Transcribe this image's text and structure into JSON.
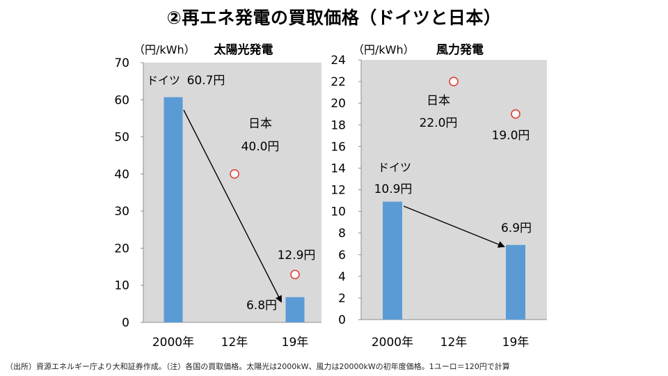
{
  "title": "②再エネ発電の買取価格（ドイツと日本）",
  "footnote": "（出所）資源エネルギー庁より大和証券作成。（注）各国の買取価格。太陽光は2000kW、風力は20000kWの初年度価格。1ユーロ＝120円で計算",
  "colors": {
    "bar": "#5b9bd5",
    "plot_bg": "#d9d9d9",
    "marker": "#e0403a",
    "arrow": "#000000"
  },
  "chart_data": [
    {
      "type": "bar",
      "title": "太陽光発電",
      "ylabel": "（円/kWh）",
      "categories": [
        "2000年",
        "12年",
        "19年"
      ],
      "ylim": [
        0,
        70
      ],
      "yticks": [
        0,
        10,
        20,
        30,
        40,
        50,
        60,
        70
      ],
      "series": [
        {
          "name": "ドイツ",
          "values": [
            60.7,
            null,
            6.8
          ],
          "labels": [
            "60.7円",
            "",
            "6.8円"
          ]
        },
        {
          "name": "日本",
          "values": [
            null,
            40.0,
            12.9
          ],
          "labels": [
            "",
            "40.0円",
            "12.9円"
          ]
        }
      ],
      "annotations": {
        "germany_name": "ドイツ",
        "japan_name": "日本"
      }
    },
    {
      "type": "bar",
      "title": "風力発電",
      "ylabel": "（円/kWh）",
      "categories": [
        "2000年",
        "12年",
        "19年"
      ],
      "ylim": [
        0,
        24
      ],
      "yticks": [
        0,
        2,
        4,
        6,
        8,
        10,
        12,
        14,
        16,
        18,
        20,
        22,
        24
      ],
      "series": [
        {
          "name": "ドイツ",
          "values": [
            10.9,
            null,
            6.9
          ],
          "labels": [
            "10.9円",
            "",
            "6.9円"
          ]
        },
        {
          "name": "日本",
          "values": [
            null,
            22.0,
            19.0
          ],
          "labels": [
            "",
            "22.0円",
            "19.0円"
          ]
        }
      ],
      "annotations": {
        "germany_name": "ドイツ",
        "japan_name": "日本"
      }
    }
  ]
}
